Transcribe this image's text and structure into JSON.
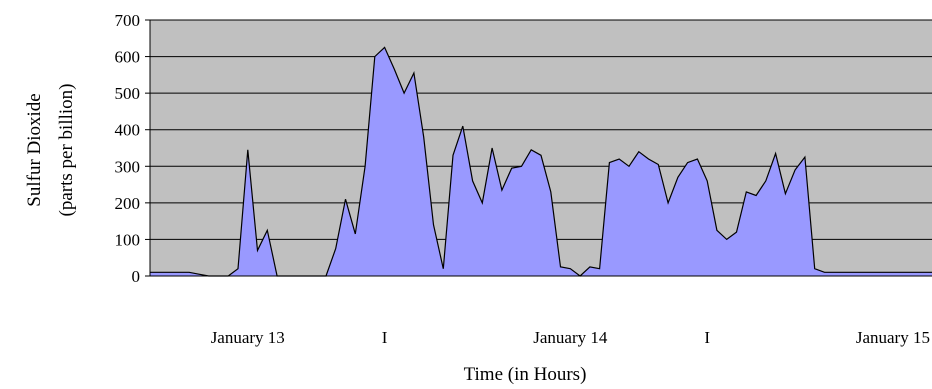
{
  "chart_data": {
    "type": "area",
    "xlabel": "Time (in Hours)",
    "ylabel_lines": [
      "Sulfur Dioxide",
      "(parts per billion)"
    ],
    "ylim": [
      0,
      700
    ],
    "yticks": [
      0,
      100,
      200,
      300,
      400,
      500,
      600,
      700
    ],
    "grid": true,
    "x_tick_labels": [
      "January 13",
      "I",
      "January 14",
      "I",
      "January 15"
    ],
    "x_tick_hours": [
      10,
      24,
      43,
      57,
      76
    ],
    "x_range_hours": [
      0,
      80
    ],
    "series": [
      {
        "values": [
          [
            0,
            10
          ],
          [
            1,
            10
          ],
          [
            2,
            10
          ],
          [
            3,
            10
          ],
          [
            4,
            10
          ],
          [
            5,
            5
          ],
          [
            6,
            0
          ],
          [
            7,
            0
          ],
          [
            8,
            0
          ],
          [
            9,
            20
          ],
          [
            10,
            345
          ],
          [
            11,
            70
          ],
          [
            12,
            125
          ],
          [
            13,
            0
          ],
          [
            14,
            0
          ],
          [
            15,
            0
          ],
          [
            16,
            0
          ],
          [
            17,
            0
          ],
          [
            18,
            0
          ],
          [
            19,
            75
          ],
          [
            20,
            210
          ],
          [
            21,
            115
          ],
          [
            22,
            300
          ],
          [
            23,
            600
          ],
          [
            24,
            625
          ],
          [
            25,
            565
          ],
          [
            26,
            500
          ],
          [
            27,
            555
          ],
          [
            28,
            380
          ],
          [
            29,
            140
          ],
          [
            30,
            20
          ],
          [
            31,
            330
          ],
          [
            32,
            410
          ],
          [
            33,
            260
          ],
          [
            34,
            200
          ],
          [
            35,
            350
          ],
          [
            36,
            235
          ],
          [
            37,
            295
          ],
          [
            38,
            300
          ],
          [
            39,
            345
          ],
          [
            40,
            330
          ],
          [
            41,
            230
          ],
          [
            42,
            25
          ],
          [
            43,
            20
          ],
          [
            44,
            0
          ],
          [
            45,
            25
          ],
          [
            46,
            20
          ],
          [
            47,
            310
          ],
          [
            48,
            320
          ],
          [
            49,
            300
          ],
          [
            50,
            340
          ],
          [
            51,
            320
          ],
          [
            52,
            305
          ],
          [
            53,
            200
          ],
          [
            54,
            270
          ],
          [
            55,
            310
          ],
          [
            56,
            320
          ],
          [
            57,
            260
          ],
          [
            58,
            125
          ],
          [
            59,
            100
          ],
          [
            60,
            120
          ],
          [
            61,
            230
          ],
          [
            62,
            220
          ],
          [
            63,
            260
          ],
          [
            64,
            335
          ],
          [
            65,
            225
          ],
          [
            66,
            290
          ],
          [
            67,
            325
          ],
          [
            68,
            20
          ],
          [
            69,
            10
          ],
          [
            70,
            10
          ],
          [
            71,
            10
          ],
          [
            72,
            10
          ],
          [
            73,
            10
          ],
          [
            74,
            10
          ],
          [
            75,
            10
          ],
          [
            76,
            10
          ],
          [
            77,
            10
          ],
          [
            78,
            10
          ],
          [
            79,
            10
          ],
          [
            80,
            10
          ]
        ]
      }
    ],
    "colors": {
      "plot_background": "#c0c0c0",
      "area_fill": "#9999ff",
      "line": "#000000",
      "grid": "#000000"
    }
  }
}
